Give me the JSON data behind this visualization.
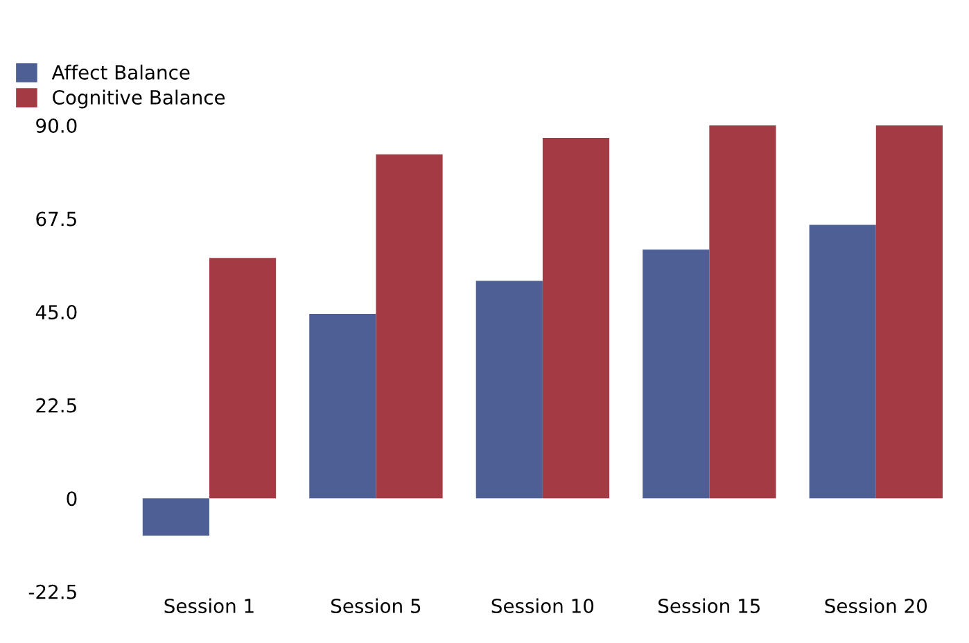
{
  "chart_data": {
    "type": "bar",
    "categories": [
      "Session 1",
      "Session 5",
      "Session 10",
      "Session 15",
      "Session 20"
    ],
    "series": [
      {
        "name": "Affect Balance",
        "color": "#4d5f95",
        "values": [
          -9,
          44.5,
          52.5,
          60,
          66
        ]
      },
      {
        "name": "Cognitive Balance",
        "color": "#a43a44",
        "values": [
          58,
          83,
          87,
          90,
          90
        ]
      }
    ],
    "ylim": [
      -22.5,
      90
    ],
    "yticks": [
      {
        "value": -22.5,
        "label": "-22.5"
      },
      0,
      {
        "value": 22.5,
        "label": "22.5"
      },
      {
        "value": 45,
        "label": "45.0"
      },
      {
        "value": 67.5,
        "label": "67.5"
      },
      {
        "value": 90,
        "label": "90.0"
      }
    ],
    "grid": false,
    "legend": "top left"
  }
}
